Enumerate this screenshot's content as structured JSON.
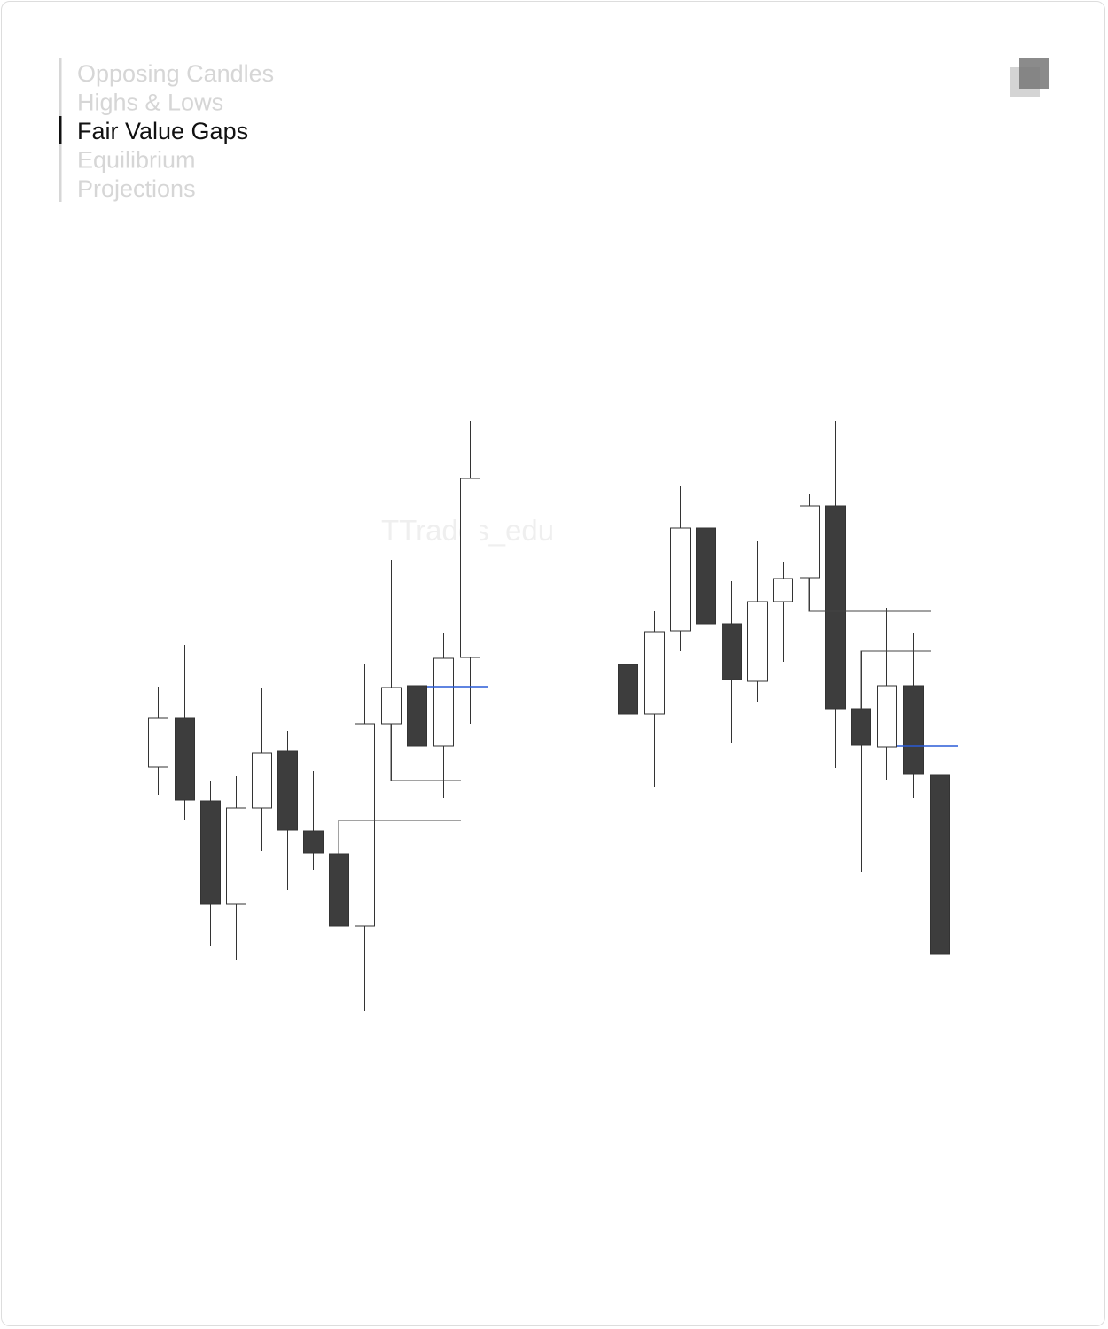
{
  "menu": {
    "items": [
      "Opposing Candles",
      "Highs & Lows",
      "Fair Value Gaps",
      "Equilibrium",
      "Projections"
    ],
    "active": 2
  },
  "watermark": "TTrades_edu"
}
